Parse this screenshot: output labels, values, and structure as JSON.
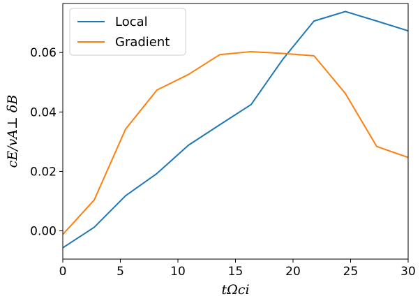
{
  "chart_data": {
    "type": "line",
    "title": "",
    "xlabel": "tΩci",
    "ylabel": "cE/vA⊥ δB",
    "xlim": [
      0,
      30
    ],
    "ylim": [
      -0.0095,
      0.0765
    ],
    "xticks": [
      "0",
      "5",
      "10",
      "15",
      "20",
      "25",
      "30"
    ],
    "yticks": [
      "0.00",
      "0.02",
      "0.04",
      "0.06"
    ],
    "grid": false,
    "legend_position": "top-left",
    "series": [
      {
        "name": "Local",
        "color": "#1f77b4",
        "x": [
          0,
          2.73,
          5.45,
          8.18,
          10.91,
          13.64,
          16.36,
          19.09,
          21.82,
          24.55,
          27.27,
          30
        ],
        "y": [
          -0.0057,
          0.0012,
          0.0118,
          0.0193,
          0.0288,
          0.0357,
          0.0425,
          0.0576,
          0.0706,
          0.0738,
          0.0706,
          0.0673
        ]
      },
      {
        "name": "Gradient",
        "color": "#ff7f0e",
        "x": [
          0,
          2.73,
          5.45,
          8.18,
          10.91,
          13.64,
          16.36,
          19.09,
          21.82,
          24.55,
          27.27,
          30
        ],
        "y": [
          -0.0012,
          0.0104,
          0.0342,
          0.0474,
          0.0526,
          0.0593,
          0.0603,
          0.0597,
          0.0589,
          0.0462,
          0.0284,
          0.0247
        ]
      }
    ]
  }
}
